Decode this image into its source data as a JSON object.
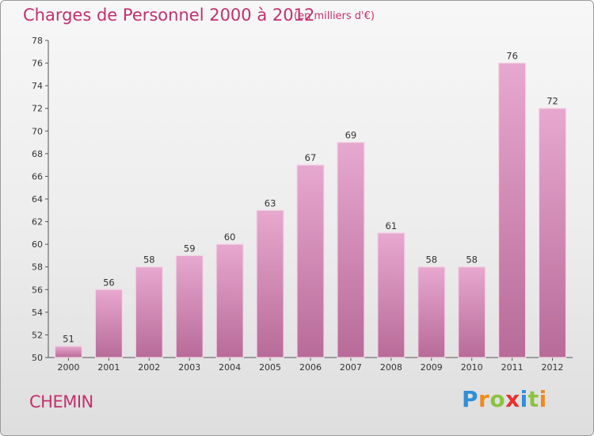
{
  "header": {
    "title": "Charges de Personnel 2000 à 2012",
    "subtitle": "(en milliers d'€)"
  },
  "footer": {
    "commune": "CHEMIN",
    "logo_letters": [
      "P",
      "r",
      "o",
      "x",
      "i",
      "t",
      "i"
    ],
    "logo_colors": [
      "#2f8fd8",
      "#f08a1c",
      "#8ac43f",
      "#e8312f",
      "#2f8fd8",
      "#8ac43f",
      "#f08a1c"
    ]
  },
  "colors": {
    "title": "#c2306e",
    "bar_top": "#e7a8cf",
    "bar_bottom": "#b86b98",
    "bar_edge": "#f3d4e6"
  },
  "chart_data": {
    "type": "bar",
    "title": "Charges de Personnel 2000 à 2012",
    "subtitle": "(en milliers d'€)",
    "categories": [
      "2000",
      "2001",
      "2002",
      "2003",
      "2004",
      "2005",
      "2006",
      "2007",
      "2008",
      "2009",
      "2010",
      "2011",
      "2012"
    ],
    "values": [
      51,
      56,
      58,
      59,
      60,
      63,
      67,
      69,
      61,
      58,
      58,
      76,
      72
    ],
    "ylim": [
      50,
      78
    ],
    "yticks": [
      50,
      52,
      54,
      56,
      58,
      60,
      62,
      64,
      66,
      68,
      70,
      72,
      74,
      76,
      78
    ],
    "grid": false,
    "legend": "none"
  }
}
